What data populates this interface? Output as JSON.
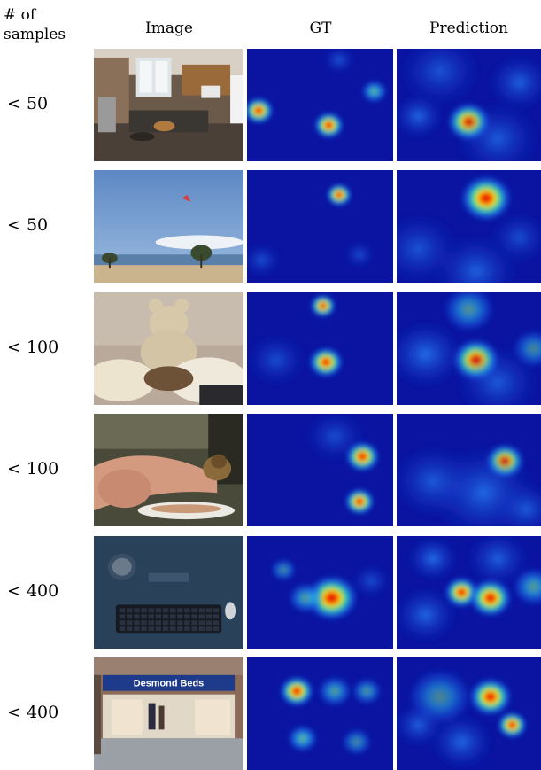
{
  "headers": {
    "samples": "# of samples",
    "image": "Image",
    "gt": "GT",
    "prediction": "Prediction"
  },
  "rows": [
    {
      "samples_label": "< 50",
      "image_scene": "kitchen",
      "gt_peaks": [
        [
          0.08,
          0.55,
          0.07,
          1.0
        ],
        [
          0.56,
          0.68,
          0.07,
          1.0
        ],
        [
          0.87,
          0.38,
          0.06,
          0.7
        ],
        [
          0.63,
          0.1,
          0.08,
          0.25
        ]
      ],
      "pred_peaks": [
        [
          0.5,
          0.65,
          0.1,
          1.0
        ],
        [
          0.15,
          0.6,
          0.12,
          0.4
        ],
        [
          0.85,
          0.3,
          0.15,
          0.35
        ],
        [
          0.3,
          0.2,
          0.2,
          0.25
        ],
        [
          0.7,
          0.8,
          0.2,
          0.3
        ]
      ]
    },
    {
      "samples_label": "< 50",
      "image_scene": "kite-beach",
      "gt_peaks": [
        [
          0.63,
          0.22,
          0.06,
          1.0
        ],
        [
          0.1,
          0.8,
          0.1,
          0.2
        ],
        [
          0.77,
          0.75,
          0.08,
          0.2
        ]
      ],
      "pred_peaks": [
        [
          0.62,
          0.25,
          0.12,
          1.0
        ],
        [
          0.55,
          0.9,
          0.2,
          0.35
        ],
        [
          0.15,
          0.7,
          0.2,
          0.25
        ],
        [
          0.85,
          0.6,
          0.15,
          0.2
        ]
      ]
    },
    {
      "samples_label": "< 100",
      "image_scene": "teddy-bear-cat",
      "gt_peaks": [
        [
          0.52,
          0.12,
          0.06,
          1.0
        ],
        [
          0.54,
          0.62,
          0.08,
          1.0
        ],
        [
          0.2,
          0.6,
          0.15,
          0.2
        ]
      ],
      "pred_peaks": [
        [
          0.55,
          0.6,
          0.11,
          1.0
        ],
        [
          0.5,
          0.15,
          0.12,
          0.55
        ],
        [
          0.95,
          0.5,
          0.1,
          0.5
        ],
        [
          0.2,
          0.55,
          0.18,
          0.45
        ],
        [
          0.7,
          0.8,
          0.2,
          0.3
        ]
      ]
    },
    {
      "samples_label": "< 100",
      "image_scene": "bird-on-hand",
      "gt_peaks": [
        [
          0.79,
          0.38,
          0.08,
          1.0
        ],
        [
          0.77,
          0.78,
          0.07,
          0.9
        ],
        [
          0.6,
          0.2,
          0.15,
          0.2
        ]
      ],
      "pred_peaks": [
        [
          0.75,
          0.42,
          0.09,
          1.0
        ],
        [
          0.6,
          0.7,
          0.25,
          0.4
        ],
        [
          0.25,
          0.6,
          0.2,
          0.3
        ],
        [
          0.9,
          0.85,
          0.15,
          0.3
        ]
      ]
    },
    {
      "samples_label": "< 400",
      "image_scene": "desk-keyboard",
      "gt_peaks": [
        [
          0.58,
          0.55,
          0.12,
          1.0
        ],
        [
          0.25,
          0.3,
          0.06,
          0.5
        ],
        [
          0.4,
          0.55,
          0.08,
          0.6
        ],
        [
          0.85,
          0.4,
          0.1,
          0.2
        ]
      ],
      "pred_peaks": [
        [
          0.45,
          0.5,
          0.08,
          1.0
        ],
        [
          0.65,
          0.55,
          0.1,
          0.9
        ],
        [
          0.25,
          0.2,
          0.12,
          0.45
        ],
        [
          0.95,
          0.45,
          0.1,
          0.6
        ],
        [
          0.2,
          0.7,
          0.15,
          0.4
        ],
        [
          0.7,
          0.2,
          0.15,
          0.35
        ]
      ]
    },
    {
      "samples_label": "< 400",
      "image_scene": "storefront-desmond-beds",
      "storefront_sign": "Desmond Beds",
      "gt_peaks": [
        [
          0.34,
          0.3,
          0.08,
          1.0
        ],
        [
          0.6,
          0.3,
          0.08,
          0.6
        ],
        [
          0.82,
          0.3,
          0.07,
          0.55
        ],
        [
          0.38,
          0.72,
          0.07,
          0.7
        ],
        [
          0.75,
          0.75,
          0.07,
          0.5
        ]
      ],
      "pred_peaks": [
        [
          0.65,
          0.35,
          0.1,
          1.0
        ],
        [
          0.8,
          0.6,
          0.07,
          0.9
        ],
        [
          0.3,
          0.35,
          0.15,
          0.5
        ],
        [
          0.45,
          0.75,
          0.15,
          0.4
        ],
        [
          0.15,
          0.6,
          0.12,
          0.35
        ]
      ]
    }
  ],
  "colors": {
    "heatmap_low": "#0a14a0",
    "heatmap_high": "#ff0000"
  }
}
